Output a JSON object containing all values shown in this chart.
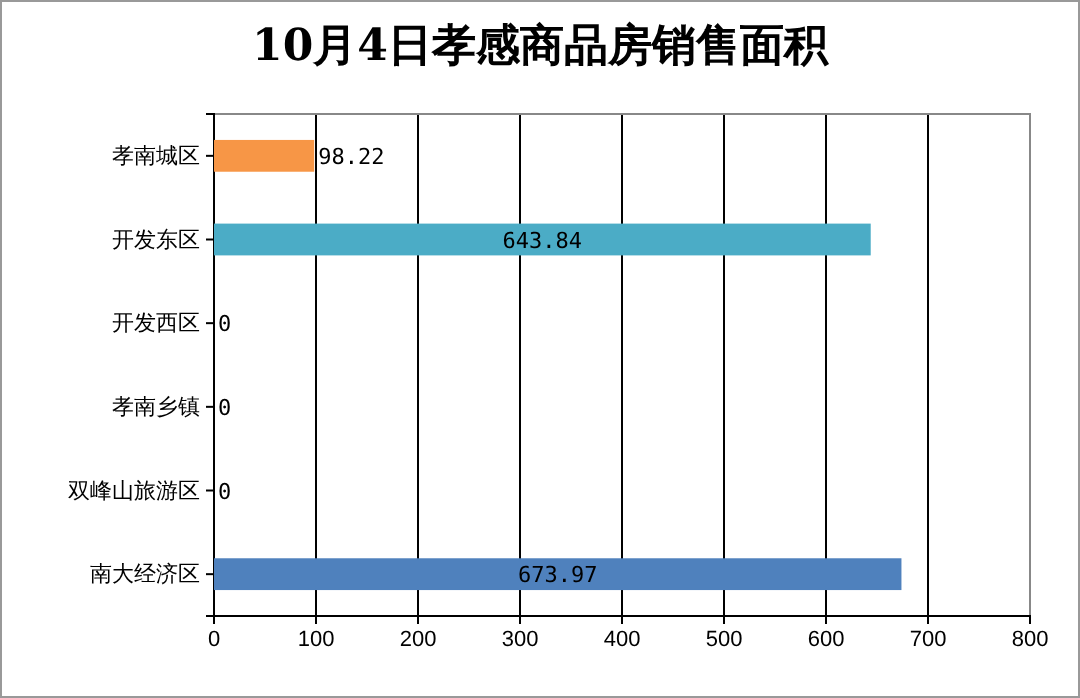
{
  "chart_data": {
    "type": "bar",
    "orientation": "horizontal",
    "title": "10月4日孝感商品房销售面积",
    "categories": [
      "孝南城区",
      "开发东区",
      "开发西区",
      "孝南乡镇",
      "双峰山旅游区",
      "南大经济区"
    ],
    "values": [
      98.22,
      643.84,
      0,
      0,
      0,
      673.97
    ],
    "colors": [
      "#f79646",
      "#4bacc6",
      "#4f81bd",
      "#4f81bd",
      "#4f81bd",
      "#4f81bd"
    ],
    "xlim": [
      0,
      800
    ],
    "xticks": [
      0,
      100,
      200,
      300,
      400,
      500,
      600,
      700,
      800
    ],
    "grid": "x",
    "data_labels": true
  }
}
